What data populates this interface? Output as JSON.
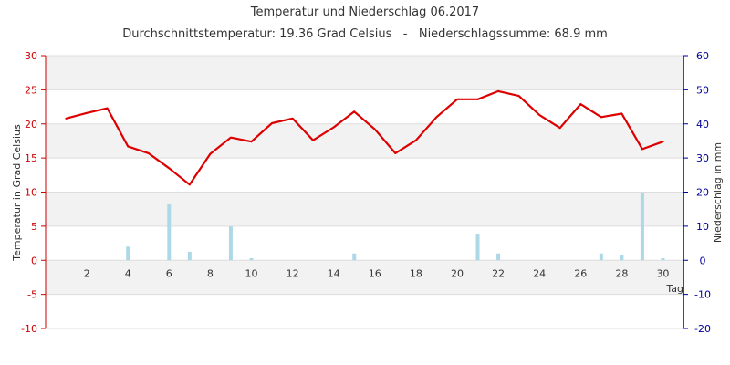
{
  "chart_data": {
    "type": "bar+line",
    "title": "Temperatur und Niederschlag 06.2017",
    "subtitle": "Durchschnittstemperatur: 19.36 Grad Celsius   -   Niederschlagssumme: 68.9 mm",
    "xlabel": "Tag",
    "ylabel_left": "Temperatur in Grad Celsius",
    "ylabel_right": "Niederschlag in mm",
    "x_ticks": [
      2,
      4,
      6,
      8,
      10,
      12,
      14,
      16,
      18,
      20,
      22,
      24,
      26,
      28,
      30
    ],
    "xlim": [
      0,
      31
    ],
    "ylim_left": [
      -10,
      30
    ],
    "ylim_right": [
      -20,
      60
    ],
    "y_ticks_left": [
      -10,
      -5,
      0,
      5,
      10,
      15,
      20,
      25,
      30
    ],
    "y_ticks_right": [
      -20,
      -10,
      0,
      10,
      20,
      30,
      40,
      50,
      60
    ],
    "grid": true,
    "colors": {
      "temperature": "#dd0000",
      "precipitation": "#add8e6",
      "left_axis": "#cc0000",
      "right_axis": "#000099",
      "band": "#f2f2f2"
    },
    "series": [
      {
        "kind": "line",
        "axis": "left",
        "x": [
          1,
          2,
          3,
          4,
          5,
          6,
          7,
          8,
          9,
          10,
          11,
          12,
          13,
          14,
          15,
          16,
          17,
          18,
          19,
          20,
          21,
          22,
          23,
          24,
          25,
          26,
          27,
          28,
          29,
          30
        ],
        "values": [
          20.8,
          21.6,
          22.3,
          16.7,
          15.7,
          13.5,
          11.1,
          15.6,
          18.0,
          17.4,
          20.1,
          20.8,
          17.6,
          19.5,
          21.8,
          19.2,
          15.7,
          17.6,
          21.0,
          23.6,
          23.6,
          24.8,
          24.1,
          21.3,
          19.4,
          22.9,
          21.0,
          21.5,
          16.3,
          17.4
        ]
      },
      {
        "kind": "bar",
        "axis": "right",
        "x": [
          1,
          2,
          3,
          4,
          5,
          6,
          7,
          8,
          9,
          10,
          11,
          12,
          13,
          14,
          15,
          16,
          17,
          18,
          19,
          20,
          21,
          22,
          23,
          24,
          25,
          26,
          27,
          28,
          29,
          30
        ],
        "values": [
          0,
          0,
          0,
          4.0,
          0,
          16.4,
          2.5,
          0,
          9.9,
          0.6,
          0,
          0,
          0,
          0,
          2.0,
          0,
          0,
          0,
          0,
          0,
          7.8,
          2.0,
          0,
          0,
          0,
          0,
          2.0,
          1.4,
          19.6,
          0.6
        ]
      }
    ]
  }
}
